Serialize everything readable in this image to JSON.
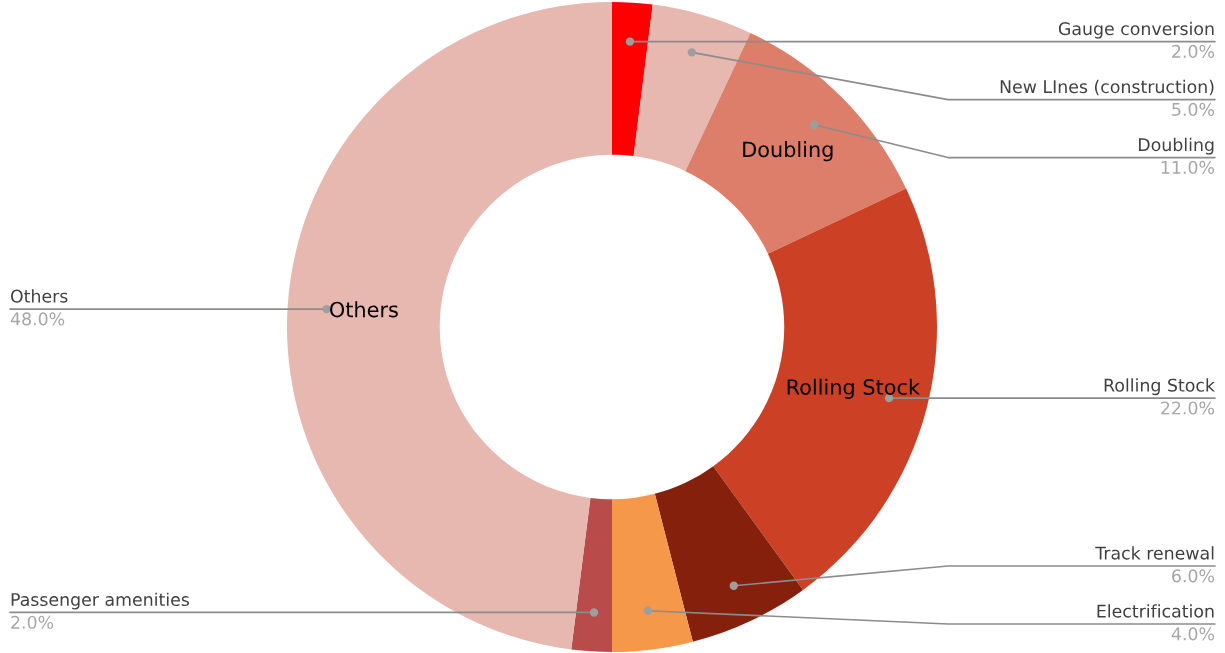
{
  "chart_data": {
    "type": "donut",
    "categories": [
      "Gauge conversion",
      "New LInes (construction)",
      "Doubling",
      "Rolling Stock",
      "Track renewal",
      "Electrification",
      "Passenger amenities",
      "Others"
    ],
    "values": [
      2,
      5,
      11,
      22,
      6,
      4,
      2,
      48
    ],
    "colors": [
      "#ff0000",
      "#e6b8af",
      "#dd7e6b",
      "#cc4125",
      "#85200c",
      "#f6984a",
      "#b94b4b",
      "#e6b8af"
    ],
    "value_labels": [
      "2.0%",
      "5.0%",
      "11.0%",
      "22.0%",
      "6.0%",
      "4.0%",
      "2.0%",
      "48.0%"
    ],
    "annotations": [
      {
        "text": "Doubling",
        "x": "Doubling"
      },
      {
        "text": "Rolling Stock",
        "x": "Rolling Stock"
      },
      {
        "text": "Others",
        "x": "Others"
      }
    ]
  }
}
